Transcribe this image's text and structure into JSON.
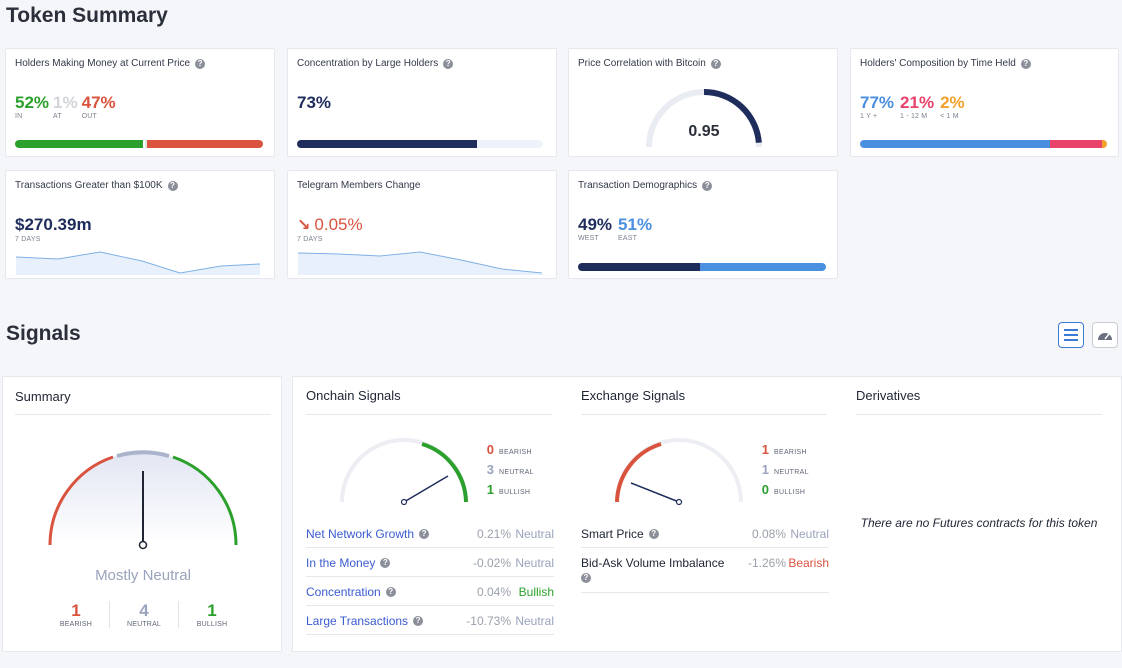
{
  "token_summary": {
    "title": "Token Summary",
    "holders_money": {
      "title": "Holders Making Money at Current Price",
      "in_value": "52%",
      "in_label": "IN",
      "at_value": "1%",
      "at_label": "AT",
      "out_value": "47%",
      "out_label": "OUT",
      "in_pct": 52,
      "at_pct": 1,
      "out_pct": 47
    },
    "concentration": {
      "title": "Concentration by Large Holders",
      "value": "73%",
      "pct": 73
    },
    "price_correlation": {
      "title": "Price Correlation with Bitcoin",
      "value": "0.95",
      "level": 0.95
    },
    "holders_composition": {
      "title": "Holders' Composition by Time Held",
      "v1": "77%",
      "l1": "1 Y +",
      "v2": "21%",
      "l2": "1 - 12 M",
      "v3": "2%",
      "l3": "< 1 M",
      "p1": 77,
      "p2": 21,
      "p3": 2
    },
    "transactions": {
      "title": "Transactions Greater than $100K",
      "value": "$270.39m",
      "sub": "7 DAYS"
    },
    "telegram": {
      "title": "Telegram Members Change",
      "value": "0.05%",
      "sub": "7 DAYS"
    },
    "demographics": {
      "title": "Transaction Demographics",
      "west_value": "49%",
      "west_label": "WEST",
      "east_value": "51%",
      "east_label": "EAST",
      "west_pct": 49,
      "east_pct": 51
    }
  },
  "signals": {
    "title": "Signals",
    "view_buttons": {
      "list": "list-icon",
      "gauge": "speedometer-icon"
    },
    "summary": {
      "title": "Summary",
      "verdict": "Mostly Neutral",
      "bearish_count": "1",
      "bearish_label": "BEARISH",
      "neutral_count": "4",
      "neutral_label": "NEUTRAL",
      "bullish_count": "1",
      "bullish_label": "BULLISH"
    },
    "onchain": {
      "title": "Onchain Signals",
      "bearish": "0",
      "neutral": "3",
      "bullish": "1",
      "bearish_label": "BEARISH",
      "neutral_label": "NEUTRAL",
      "bullish_label": "BULLISH",
      "rows": [
        {
          "name": "Net Network Growth",
          "pct": "0.21%",
          "state": "Neutral"
        },
        {
          "name": "In the Money",
          "pct": "-0.02%",
          "state": "Neutral"
        },
        {
          "name": "Concentration",
          "pct": "0.04%",
          "state": "Bullish"
        },
        {
          "name": "Large Transactions",
          "pct": "-10.73%",
          "state": "Neutral"
        }
      ]
    },
    "exchange": {
      "title": "Exchange Signals",
      "bearish": "1",
      "neutral": "1",
      "bullish": "0",
      "bearish_label": "BEARISH",
      "neutral_label": "NEUTRAL",
      "bullish_label": "BULLISH",
      "rows": [
        {
          "name": "Smart Price",
          "pct": "0.08%",
          "state": "Neutral"
        },
        {
          "name": "Bid-Ask Volume Imbalance",
          "pct": "-1.26%",
          "state": "Bearish"
        }
      ]
    },
    "derivatives": {
      "title": "Derivatives",
      "empty_message": "There are no Futures contracts for this token"
    }
  },
  "colors": {
    "green": "#2ca02c",
    "red": "#d9533e",
    "navy": "#1f2d5c",
    "blue": "#4a8fe0",
    "pink": "#e8436a",
    "orange": "#f2a12b",
    "neutral": "#9aa3bd",
    "link": "#3a5bd0"
  }
}
